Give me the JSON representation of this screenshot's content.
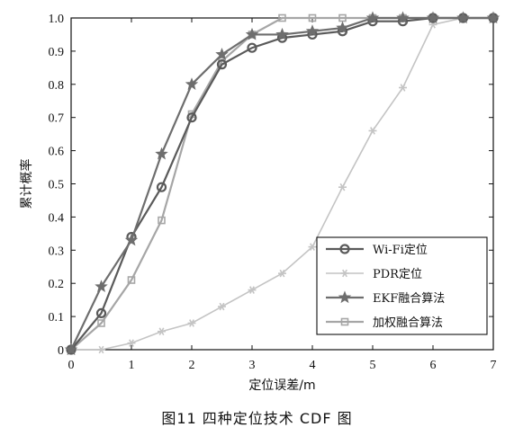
{
  "caption": "图11   四种定位技术 CDF 图",
  "chart_data": {
    "type": "line",
    "title": "",
    "xlabel": "定位误差/m",
    "ylabel": "累计概率",
    "xlim": [
      0,
      7
    ],
    "ylim": [
      0,
      1.0
    ],
    "xticks": [
      0,
      1,
      2,
      3,
      4,
      5,
      6,
      7
    ],
    "yticks": [
      0,
      0.1,
      0.2,
      0.3,
      0.4,
      0.5,
      0.6,
      0.7,
      0.8,
      0.9,
      1.0
    ],
    "grid": false,
    "legend_position": "bottom-right",
    "series": [
      {
        "name": "Wi-Fi定位",
        "marker": "circle",
        "color": "#5a5a5a",
        "x": [
          0,
          0.5,
          1.0,
          1.5,
          2.0,
          2.5,
          3.0,
          3.5,
          4.0,
          4.5,
          5.0,
          5.5,
          6.0,
          6.5,
          7.0
        ],
        "y": [
          0,
          0.11,
          0.34,
          0.49,
          0.7,
          0.86,
          0.91,
          0.94,
          0.95,
          0.96,
          0.99,
          0.99,
          1.0,
          1.0,
          1.0
        ]
      },
      {
        "name": "PDR定位",
        "marker": "asterisk",
        "color": "#c4c4c4",
        "x": [
          0,
          0.5,
          1.0,
          1.5,
          2.0,
          2.5,
          3.0,
          3.5,
          4.0,
          4.5,
          5.0,
          5.5,
          6.0,
          6.5,
          7.0
        ],
        "y": [
          0,
          0,
          0.02,
          0.055,
          0.08,
          0.13,
          0.18,
          0.23,
          0.31,
          0.49,
          0.66,
          0.79,
          0.98,
          1.0,
          1.0
        ]
      },
      {
        "name": "EKF融合算法",
        "marker": "star",
        "color": "#6e6e6e",
        "x": [
          0,
          0.5,
          1.0,
          1.5,
          2.0,
          2.5,
          3.0,
          3.5,
          4.0,
          4.5,
          5.0,
          5.5,
          6.0,
          6.5,
          7.0
        ],
        "y": [
          0,
          0.19,
          0.33,
          0.59,
          0.8,
          0.89,
          0.95,
          0.95,
          0.96,
          0.97,
          1.0,
          1.0,
          1.0,
          1.0,
          1.0
        ]
      },
      {
        "name": "加权融合算法",
        "marker": "square",
        "color": "#a6a6a6",
        "x": [
          0,
          0.5,
          1.0,
          1.5,
          2.0,
          2.5,
          3.0,
          3.5,
          4.0,
          4.5,
          5.0,
          5.5,
          6.0,
          6.5,
          7.0
        ],
        "y": [
          0,
          0.08,
          0.21,
          0.39,
          0.71,
          0.87,
          0.95,
          1.0,
          1.0,
          1.0,
          1.0,
          1.0,
          1.0,
          1.0,
          1.0
        ]
      }
    ]
  }
}
